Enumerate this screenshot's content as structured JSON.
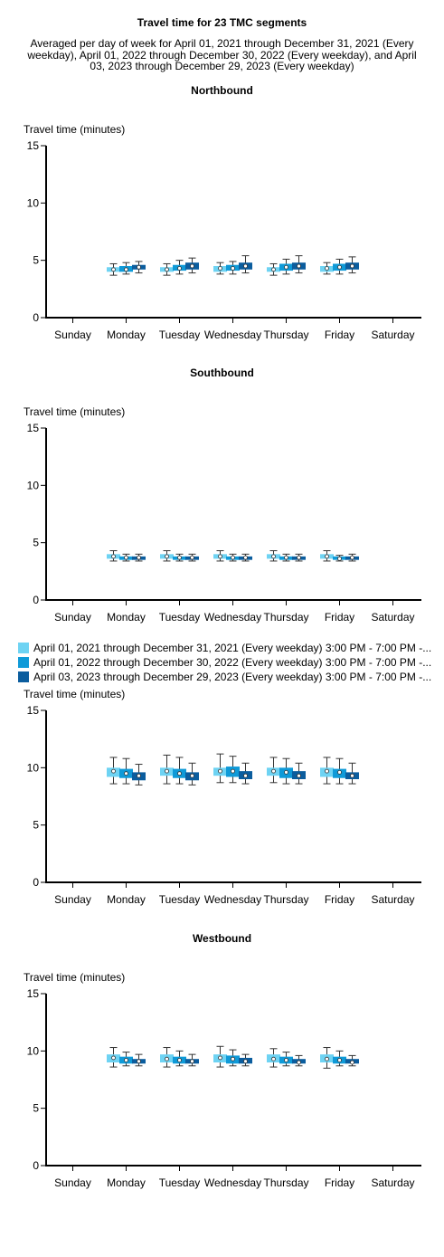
{
  "title": "Travel time for 23 TMC segments",
  "subtitle": "Averaged per day of week for April 01, 2021 through December 31, 2021 (Every weekday), April 01, 2022 through December 30, 2022 (Every weekday), and April 03, 2023 through December 29, 2023 (Every weekday)",
  "legend": [
    {
      "label": "April 01, 2021 through December 31, 2021 (Every weekday) 3:00 PM - 7:00 PM -...",
      "color": "#6ed3f3"
    },
    {
      "label": "April 01, 2022 through December 30, 2022 (Every weekday) 3:00 PM - 7:00 PM -...",
      "color": "#0f9ad8"
    },
    {
      "label": "April 03, 2023 through December 29, 2023 (Every weekday) 3:00 PM - 7:00 PM -...",
      "color": "#0b5d9e"
    }
  ],
  "chart_data": [
    {
      "type": "boxplot",
      "title": "Northbound",
      "ylabel": "Travel time (minutes)",
      "ylim": [
        0,
        15
      ],
      "yticks": [
        0,
        5,
        10,
        15
      ],
      "categories": [
        "Sunday",
        "Monday",
        "Tuesday",
        "Wednesday",
        "Thursday",
        "Friday",
        "Saturday"
      ],
      "series": [
        {
          "values": {
            "Monday": {
              "min": 3.7,
              "q1": 4.0,
              "median": 4.2,
              "q3": 4.4,
              "max": 4.7
            },
            "Tuesday": {
              "min": 3.7,
              "q1": 4.0,
              "median": 4.2,
              "q3": 4.4,
              "max": 4.7
            },
            "Wednesday": {
              "min": 3.8,
              "q1": 4.0,
              "median": 4.3,
              "q3": 4.5,
              "max": 4.8
            },
            "Thursday": {
              "min": 3.7,
              "q1": 4.0,
              "median": 4.2,
              "q3": 4.4,
              "max": 4.7
            },
            "Friday": {
              "min": 3.8,
              "q1": 4.0,
              "median": 4.3,
              "q3": 4.5,
              "max": 4.8
            }
          }
        },
        {
          "values": {
            "Monday": {
              "min": 3.8,
              "q1": 4.0,
              "median": 4.2,
              "q3": 4.5,
              "max": 4.8
            },
            "Tuesday": {
              "min": 3.8,
              "q1": 4.1,
              "median": 4.3,
              "q3": 4.6,
              "max": 5.0
            },
            "Wednesday": {
              "min": 3.8,
              "q1": 4.1,
              "median": 4.3,
              "q3": 4.6,
              "max": 4.9
            },
            "Thursday": {
              "min": 3.8,
              "q1": 4.1,
              "median": 4.4,
              "q3": 4.7,
              "max": 5.1
            },
            "Friday": {
              "min": 3.8,
              "q1": 4.1,
              "median": 4.4,
              "q3": 4.7,
              "max": 5.1
            }
          }
        },
        {
          "values": {
            "Monday": {
              "min": 3.9,
              "q1": 4.2,
              "median": 4.4,
              "q3": 4.6,
              "max": 4.9
            },
            "Tuesday": {
              "min": 3.9,
              "q1": 4.2,
              "median": 4.5,
              "q3": 4.8,
              "max": 5.2
            },
            "Wednesday": {
              "min": 3.9,
              "q1": 4.2,
              "median": 4.5,
              "q3": 4.8,
              "max": 5.4
            },
            "Thursday": {
              "min": 3.9,
              "q1": 4.2,
              "median": 4.5,
              "q3": 4.8,
              "max": 5.4
            },
            "Friday": {
              "min": 3.9,
              "q1": 4.2,
              "median": 4.5,
              "q3": 4.8,
              "max": 5.3
            }
          }
        }
      ]
    },
    {
      "type": "boxplot",
      "title": "Southbound",
      "ylabel": "Travel time (minutes)",
      "ylim": [
        0,
        15
      ],
      "yticks": [
        0,
        5,
        10,
        15
      ],
      "categories": [
        "Sunday",
        "Monday",
        "Tuesday",
        "Wednesday",
        "Thursday",
        "Friday",
        "Saturday"
      ],
      "series": [
        {
          "values": {
            "Monday": {
              "min": 3.4,
              "q1": 3.6,
              "median": 3.8,
              "q3": 4.0,
              "max": 4.3
            },
            "Tuesday": {
              "min": 3.4,
              "q1": 3.6,
              "median": 3.8,
              "q3": 4.0,
              "max": 4.3
            },
            "Wednesday": {
              "min": 3.4,
              "q1": 3.6,
              "median": 3.8,
              "q3": 4.0,
              "max": 4.3
            },
            "Thursday": {
              "min": 3.4,
              "q1": 3.6,
              "median": 3.8,
              "q3": 4.0,
              "max": 4.3
            },
            "Friday": {
              "min": 3.4,
              "q1": 3.6,
              "median": 3.8,
              "q3": 4.0,
              "max": 4.3
            }
          }
        },
        {
          "values": {
            "Monday": {
              "min": 3.4,
              "q1": 3.5,
              "median": 3.7,
              "q3": 3.8,
              "max": 4.0
            },
            "Tuesday": {
              "min": 3.4,
              "q1": 3.5,
              "median": 3.7,
              "q3": 3.8,
              "max": 4.0
            },
            "Wednesday": {
              "min": 3.4,
              "q1": 3.5,
              "median": 3.7,
              "q3": 3.8,
              "max": 4.0
            },
            "Thursday": {
              "min": 3.4,
              "q1": 3.5,
              "median": 3.7,
              "q3": 3.8,
              "max": 4.0
            },
            "Friday": {
              "min": 3.4,
              "q1": 3.5,
              "median": 3.6,
              "q3": 3.8,
              "max": 3.9
            }
          }
        },
        {
          "values": {
            "Monday": {
              "min": 3.4,
              "q1": 3.5,
              "median": 3.7,
              "q3": 3.8,
              "max": 4.0
            },
            "Tuesday": {
              "min": 3.4,
              "q1": 3.5,
              "median": 3.7,
              "q3": 3.8,
              "max": 4.0
            },
            "Wednesday": {
              "min": 3.4,
              "q1": 3.5,
              "median": 3.7,
              "q3": 3.8,
              "max": 4.0
            },
            "Thursday": {
              "min": 3.4,
              "q1": 3.5,
              "median": 3.7,
              "q3": 3.8,
              "max": 4.0
            },
            "Friday": {
              "min": 3.4,
              "q1": 3.5,
              "median": 3.7,
              "q3": 3.8,
              "max": 4.0
            }
          }
        }
      ]
    },
    {
      "type": "boxplot",
      "title": "",
      "ylabel": "Travel time (minutes)",
      "ylim": [
        0,
        15
      ],
      "yticks": [
        0,
        5,
        10,
        15
      ],
      "categories": [
        "Sunday",
        "Monday",
        "Tuesday",
        "Wednesday",
        "Thursday",
        "Friday",
        "Saturday"
      ],
      "series": [
        {
          "values": {
            "Monday": {
              "min": 8.6,
              "q1": 9.2,
              "median": 9.7,
              "q3": 10.0,
              "max": 10.9
            },
            "Tuesday": {
              "min": 8.6,
              "q1": 9.3,
              "median": 9.7,
              "q3": 10.0,
              "max": 11.1
            },
            "Wednesday": {
              "min": 8.7,
              "q1": 9.3,
              "median": 9.7,
              "q3": 10.0,
              "max": 11.2
            },
            "Thursday": {
              "min": 8.7,
              "q1": 9.3,
              "median": 9.7,
              "q3": 10.0,
              "max": 10.9
            },
            "Friday": {
              "min": 8.6,
              "q1": 9.2,
              "median": 9.7,
              "q3": 10.0,
              "max": 10.9
            }
          }
        },
        {
          "values": {
            "Monday": {
              "min": 8.6,
              "q1": 9.1,
              "median": 9.5,
              "q3": 9.9,
              "max": 10.8
            },
            "Tuesday": {
              "min": 8.6,
              "q1": 9.1,
              "median": 9.5,
              "q3": 9.9,
              "max": 10.9
            },
            "Wednesday": {
              "min": 8.7,
              "q1": 9.2,
              "median": 9.7,
              "q3": 10.1,
              "max": 11.0
            },
            "Thursday": {
              "min": 8.6,
              "q1": 9.1,
              "median": 9.6,
              "q3": 10.0,
              "max": 10.8
            },
            "Friday": {
              "min": 8.6,
              "q1": 9.1,
              "median": 9.6,
              "q3": 9.9,
              "max": 10.8
            }
          }
        },
        {
          "values": {
            "Monday": {
              "min": 8.5,
              "q1": 8.9,
              "median": 9.3,
              "q3": 9.6,
              "max": 10.3
            },
            "Tuesday": {
              "min": 8.5,
              "q1": 8.9,
              "median": 9.3,
              "q3": 9.6,
              "max": 10.4
            },
            "Wednesday": {
              "min": 8.6,
              "q1": 9.0,
              "median": 9.3,
              "q3": 9.7,
              "max": 10.4
            },
            "Thursday": {
              "min": 8.6,
              "q1": 9.0,
              "median": 9.3,
              "q3": 9.7,
              "max": 10.4
            },
            "Friday": {
              "min": 8.6,
              "q1": 9.0,
              "median": 9.3,
              "q3": 9.6,
              "max": 10.4
            }
          }
        }
      ]
    },
    {
      "type": "boxplot",
      "title": "Westbound",
      "ylabel": "Travel time (minutes)",
      "ylim": [
        0,
        15
      ],
      "yticks": [
        0,
        5,
        10,
        15
      ],
      "categories": [
        "Sunday",
        "Monday",
        "Tuesday",
        "Wednesday",
        "Thursday",
        "Friday",
        "Saturday"
      ],
      "series": [
        {
          "values": {
            "Monday": {
              "min": 8.6,
              "q1": 9.0,
              "median": 9.4,
              "q3": 9.7,
              "max": 10.3
            },
            "Tuesday": {
              "min": 8.6,
              "q1": 9.0,
              "median": 9.3,
              "q3": 9.7,
              "max": 10.3
            },
            "Wednesday": {
              "min": 8.6,
              "q1": 9.0,
              "median": 9.4,
              "q3": 9.7,
              "max": 10.4
            },
            "Thursday": {
              "min": 8.6,
              "q1": 9.0,
              "median": 9.3,
              "q3": 9.7,
              "max": 10.2
            },
            "Friday": {
              "min": 8.5,
              "q1": 9.0,
              "median": 9.3,
              "q3": 9.7,
              "max": 10.3
            }
          }
        },
        {
          "values": {
            "Monday": {
              "min": 8.7,
              "q1": 8.9,
              "median": 9.2,
              "q3": 9.5,
              "max": 9.9
            },
            "Tuesday": {
              "min": 8.7,
              "q1": 8.9,
              "median": 9.2,
              "q3": 9.5,
              "max": 10.0
            },
            "Wednesday": {
              "min": 8.7,
              "q1": 8.9,
              "median": 9.3,
              "q3": 9.6,
              "max": 10.1
            },
            "Thursday": {
              "min": 8.7,
              "q1": 8.9,
              "median": 9.2,
              "q3": 9.5,
              "max": 9.9
            },
            "Friday": {
              "min": 8.7,
              "q1": 8.9,
              "median": 9.2,
              "q3": 9.5,
              "max": 10.0
            }
          }
        },
        {
          "values": {
            "Monday": {
              "min": 8.7,
              "q1": 8.9,
              "median": 9.1,
              "q3": 9.3,
              "max": 9.7
            },
            "Tuesday": {
              "min": 8.7,
              "q1": 8.9,
              "median": 9.1,
              "q3": 9.3,
              "max": 9.7
            },
            "Wednesday": {
              "min": 8.7,
              "q1": 8.9,
              "median": 9.1,
              "q3": 9.4,
              "max": 9.7
            },
            "Thursday": {
              "min": 8.7,
              "q1": 8.9,
              "median": 9.0,
              "q3": 9.3,
              "max": 9.6
            },
            "Friday": {
              "min": 8.7,
              "q1": 8.9,
              "median": 9.0,
              "q3": 9.3,
              "max": 9.6
            }
          }
        }
      ]
    }
  ]
}
